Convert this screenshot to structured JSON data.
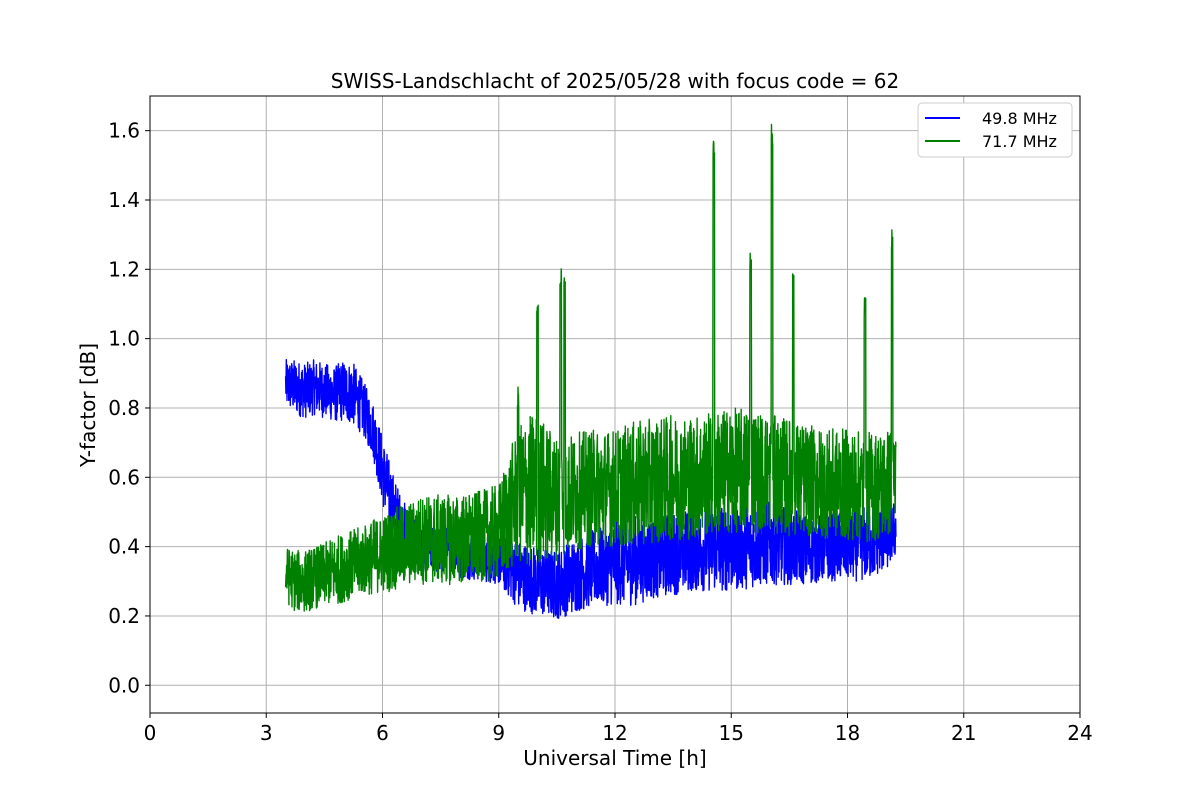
{
  "chart_data": {
    "type": "line",
    "title": "SWISS-Landschlacht of 2025/05/28 with focus code = 62",
    "xlabel": "Universal Time [h]",
    "ylabel": "Y-factor [dB]",
    "xlim": [
      0,
      24
    ],
    "ylim": [
      -0.08,
      1.7
    ],
    "xticks": [
      0,
      3,
      6,
      9,
      12,
      15,
      18,
      21,
      24
    ],
    "yticks": [
      0.0,
      0.2,
      0.4,
      0.6,
      0.8,
      1.0,
      1.2,
      1.4,
      1.6
    ],
    "ytick_labels": [
      "0.0",
      "0.2",
      "0.4",
      "0.6",
      "0.8",
      "1.0",
      "1.2",
      "1.4",
      "1.6"
    ],
    "grid": true,
    "legend_position": "top-right",
    "series": [
      {
        "name": "49.8 MHz",
        "color": "#0000ff",
        "x": [
          3.5,
          3.75,
          4.0,
          4.25,
          4.5,
          4.75,
          5.0,
          5.25,
          5.5,
          5.75,
          6.0,
          6.25,
          6.5,
          6.75,
          7.0,
          7.5,
          8.0,
          8.5,
          9.0,
          9.5,
          10.0,
          10.5,
          11.0,
          11.5,
          12.0,
          12.5,
          13.0,
          13.5,
          14.0,
          14.5,
          15.0,
          15.5,
          16.0,
          16.5,
          17.0,
          17.5,
          18.0,
          18.5,
          19.0,
          19.25
        ],
        "y": [
          0.87,
          0.86,
          0.85,
          0.86,
          0.85,
          0.84,
          0.85,
          0.84,
          0.8,
          0.74,
          0.62,
          0.52,
          0.46,
          0.42,
          0.4,
          0.39,
          0.38,
          0.37,
          0.36,
          0.32,
          0.3,
          0.29,
          0.32,
          0.34,
          0.35,
          0.36,
          0.37,
          0.38,
          0.39,
          0.4,
          0.4,
          0.4,
          0.41,
          0.4,
          0.39,
          0.4,
          0.4,
          0.41,
          0.43,
          0.45
        ],
        "spread": [
          0.07,
          0.08,
          0.08,
          0.08,
          0.08,
          0.08,
          0.09,
          0.09,
          0.08,
          0.08,
          0.1,
          0.1,
          0.08,
          0.08,
          0.07,
          0.07,
          0.07,
          0.07,
          0.07,
          0.1,
          0.1,
          0.1,
          0.11,
          0.11,
          0.12,
          0.13,
          0.12,
          0.12,
          0.12,
          0.13,
          0.13,
          0.12,
          0.12,
          0.11,
          0.1,
          0.1,
          0.1,
          0.11,
          0.1,
          0.08
        ]
      },
      {
        "name": "71.7 MHz",
        "color": "#008000",
        "x": [
          3.5,
          3.75,
          4.0,
          4.25,
          4.5,
          4.75,
          5.0,
          5.25,
          5.5,
          5.75,
          6.0,
          6.25,
          6.5,
          6.75,
          7.0,
          7.5,
          8.0,
          8.5,
          9.0,
          9.5,
          9.75,
          10.0,
          10.25,
          10.5,
          10.75,
          11.0,
          11.5,
          12.0,
          12.5,
          13.0,
          13.5,
          14.0,
          14.5,
          15.0,
          15.5,
          16.0,
          16.5,
          17.0,
          17.5,
          18.0,
          18.5,
          19.0,
          19.25
        ],
        "y": [
          0.32,
          0.3,
          0.3,
          0.31,
          0.32,
          0.33,
          0.34,
          0.35,
          0.36,
          0.37,
          0.38,
          0.39,
          0.4,
          0.41,
          0.42,
          0.42,
          0.42,
          0.43,
          0.44,
          0.55,
          0.56,
          0.57,
          0.55,
          0.54,
          0.55,
          0.56,
          0.57,
          0.57,
          0.58,
          0.59,
          0.6,
          0.6,
          0.61,
          0.62,
          0.62,
          0.61,
          0.6,
          0.59,
          0.58,
          0.58,
          0.57,
          0.58,
          0.6
        ],
        "spread": [
          0.08,
          0.09,
          0.09,
          0.09,
          0.09,
          0.1,
          0.1,
          0.1,
          0.1,
          0.11,
          0.11,
          0.12,
          0.12,
          0.12,
          0.13,
          0.13,
          0.13,
          0.13,
          0.14,
          0.2,
          0.22,
          0.22,
          0.2,
          0.18,
          0.17,
          0.17,
          0.17,
          0.17,
          0.18,
          0.18,
          0.18,
          0.18,
          0.18,
          0.18,
          0.18,
          0.17,
          0.17,
          0.16,
          0.16,
          0.16,
          0.16,
          0.16,
          0.15
        ],
        "peaks": [
          {
            "x": 9.5,
            "y": 0.88
          },
          {
            "x": 10.0,
            "y": 1.1
          },
          {
            "x": 10.6,
            "y": 1.21
          },
          {
            "x": 10.7,
            "y": 1.18
          },
          {
            "x": 14.55,
            "y": 1.58
          },
          {
            "x": 15.5,
            "y": 1.25
          },
          {
            "x": 16.05,
            "y": 1.62
          },
          {
            "x": 16.6,
            "y": 1.19
          },
          {
            "x": 18.45,
            "y": 1.12
          },
          {
            "x": 19.15,
            "y": 1.32
          }
        ]
      }
    ]
  }
}
